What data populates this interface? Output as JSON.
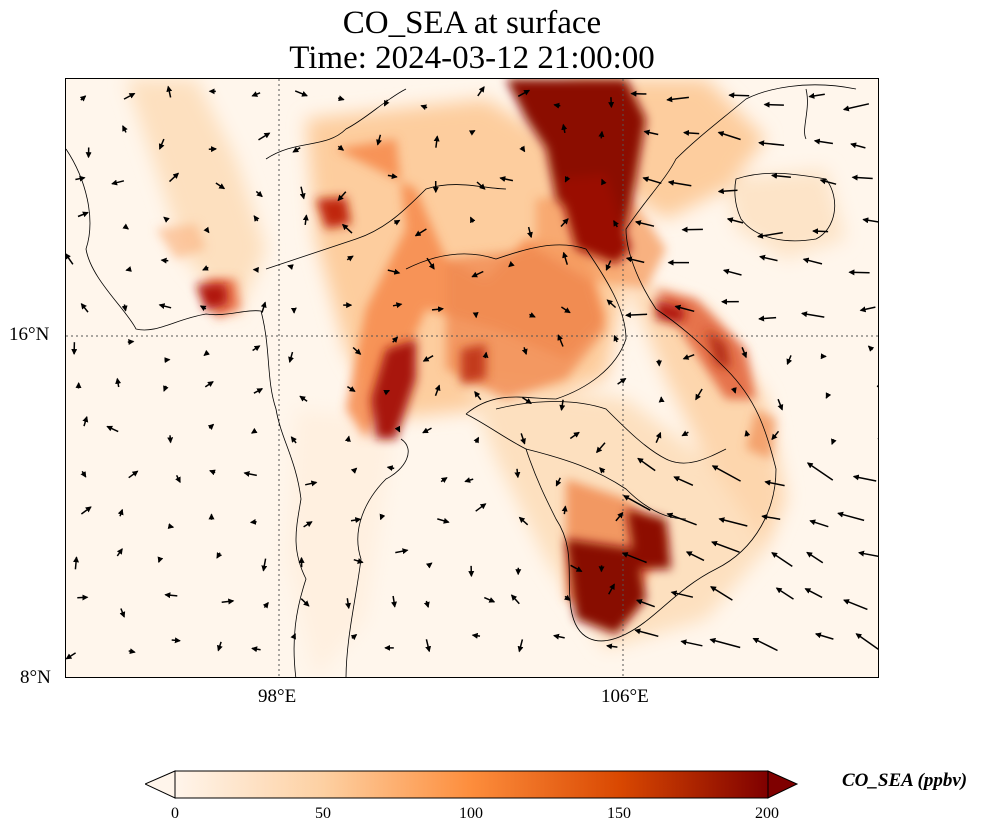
{
  "title": {
    "line1": "CO_SEA at surface",
    "line2": "Time: 2024-03-12 21:00:00"
  },
  "map": {
    "lat_ticks": [
      "16°N",
      "8°N"
    ],
    "lon_ticks": [
      "98°E",
      "106°E"
    ],
    "gridlines": true,
    "variable": "CO_SEA",
    "region": "Mainland Southeast Asia"
  },
  "colorbar": {
    "label": "CO_SEA (ppbv)",
    "ticks": [
      "0",
      "50",
      "100",
      "150",
      "200"
    ],
    "min": 0,
    "max": 200,
    "extend": "both",
    "colormap": [
      "#fff5eb",
      "#fdd0a2",
      "#fd8d3c",
      "#d94801",
      "#7f0000"
    ]
  }
}
